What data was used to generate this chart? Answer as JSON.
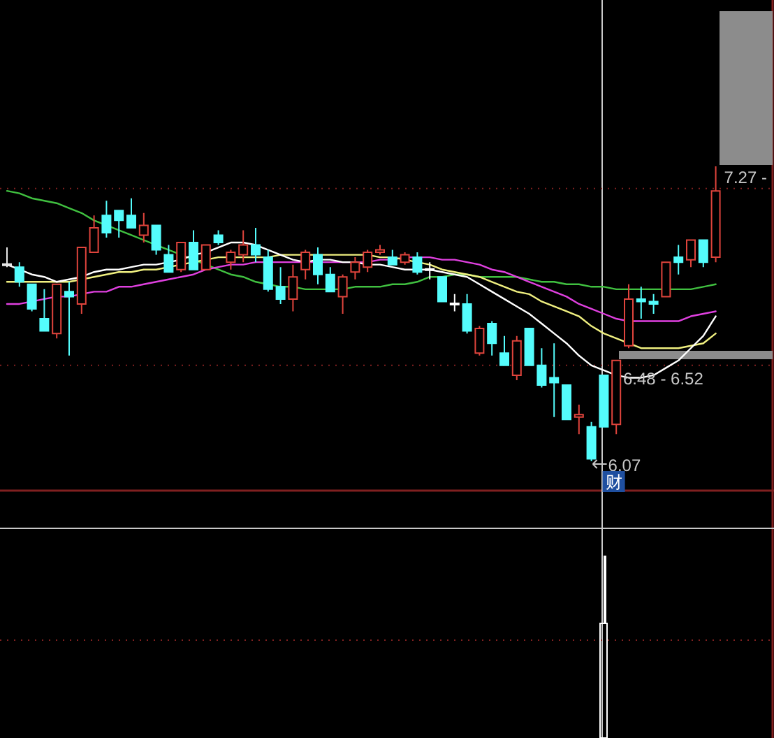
{
  "chart_data": {
    "type": "candlestick",
    "categories": [
      null,
      null,
      null,
      null,
      null,
      null,
      null,
      null,
      null,
      null,
      null,
      null,
      null,
      null,
      null,
      null,
      null,
      null,
      null,
      null,
      null,
      null,
      null,
      null,
      null,
      null,
      null,
      null,
      null,
      null,
      null,
      null,
      null,
      null,
      null,
      null,
      null,
      null,
      null,
      null,
      null,
      null,
      null,
      null,
      null,
      null,
      null,
      null,
      null,
      null,
      null,
      null,
      null,
      null,
      null,
      null,
      null,
      null
    ],
    "ohlc": [
      [
        6.87,
        6.94,
        6.86,
        6.87
      ],
      [
        6.86,
        6.88,
        6.78,
        6.8
      ],
      [
        6.79,
        6.79,
        6.68,
        6.69
      ],
      [
        6.65,
        6.77,
        6.6,
        6.6
      ],
      [
        6.59,
        6.79,
        6.57,
        6.79
      ],
      [
        6.76,
        6.8,
        6.5,
        6.74
      ],
      [
        6.71,
        6.94,
        6.67,
        6.94
      ],
      [
        6.92,
        7.07,
        6.92,
        7.02
      ],
      [
        7.07,
        7.13,
        6.98,
        7.0
      ],
      [
        7.09,
        7.09,
        6.98,
        7.05
      ],
      [
        7.07,
        7.14,
        7.02,
        7.02
      ],
      [
        6.99,
        7.08,
        6.96,
        7.03
      ],
      [
        7.03,
        7.03,
        6.91,
        6.93
      ],
      [
        6.91,
        6.95,
        6.84,
        6.84
      ],
      [
        6.85,
        6.96,
        6.84,
        6.96
      ],
      [
        6.96,
        7.01,
        6.85,
        6.85
      ],
      [
        6.85,
        6.95,
        6.85,
        6.95
      ],
      [
        6.99,
        7.01,
        6.95,
        6.96
      ],
      [
        6.88,
        6.93,
        6.85,
        6.92
      ],
      [
        6.91,
        7.01,
        6.88,
        6.95
      ],
      [
        6.95,
        7.02,
        6.88,
        6.91
      ],
      [
        6.9,
        6.93,
        6.76,
        6.77
      ],
      [
        6.78,
        6.86,
        6.71,
        6.73
      ],
      [
        6.73,
        6.87,
        6.68,
        6.82
      ],
      [
        6.85,
        6.93,
        6.81,
        6.92
      ],
      [
        6.91,
        6.94,
        6.79,
        6.83
      ],
      [
        6.83,
        6.86,
        6.76,
        6.76
      ],
      [
        6.74,
        6.83,
        6.67,
        6.82
      ],
      [
        6.84,
        6.9,
        6.81,
        6.88
      ],
      [
        6.86,
        6.93,
        6.84,
        6.92
      ],
      [
        6.92,
        6.95,
        6.91,
        6.93
      ],
      [
        6.9,
        6.93,
        6.87,
        6.87
      ],
      [
        6.88,
        6.92,
        6.87,
        6.91
      ],
      [
        6.9,
        6.92,
        6.83,
        6.84
      ],
      [
        6.85,
        6.88,
        6.81,
        6.85
      ],
      [
        6.82,
        6.82,
        6.72,
        6.72
      ],
      [
        6.71,
        6.75,
        6.68,
        6.71
      ],
      [
        6.71,
        6.75,
        6.59,
        6.6
      ],
      [
        6.51,
        6.62,
        6.5,
        6.61
      ],
      [
        6.63,
        6.64,
        6.5,
        6.55
      ],
      [
        6.51,
        6.58,
        6.46,
        6.46
      ],
      [
        6.42,
        6.58,
        6.4,
        6.56
      ],
      [
        6.61,
        6.61,
        6.46,
        6.46
      ],
      [
        6.46,
        6.53,
        6.37,
        6.38
      ],
      [
        6.41,
        6.55,
        6.25,
        6.39
      ],
      [
        6.38,
        6.38,
        6.24,
        6.24
      ],
      [
        6.25,
        6.3,
        6.18,
        6.26
      ],
      [
        6.21,
        6.23,
        6.07,
        6.08
      ],
      [
        6.42,
        6.42,
        6.21,
        6.21
      ],
      [
        6.22,
        6.48,
        6.18,
        6.48
      ],
      [
        6.54,
        6.79,
        6.53,
        6.73
      ],
      [
        6.73,
        6.78,
        6.65,
        6.72
      ],
      [
        6.72,
        6.75,
        6.67,
        6.71
      ],
      [
        6.74,
        6.88,
        6.74,
        6.88
      ],
      [
        6.9,
        6.95,
        6.83,
        6.88
      ],
      [
        6.89,
        6.97,
        6.86,
        6.97
      ],
      [
        6.97,
        6.97,
        6.86,
        6.88
      ],
      [
        6.9,
        7.27,
        6.88,
        7.17
      ]
    ],
    "colors": [
      "#e8e8e8",
      "#54fcfc",
      "#54fcfc",
      "#54fcfc",
      "#e0443c",
      "#54fcfc",
      "#e0443c",
      "#e0443c",
      "#54fcfc",
      "#54fcfc",
      "#54fcfc",
      "#e0443c",
      "#54fcfc",
      "#54fcfc",
      "#e0443c",
      "#54fcfc",
      "#e0443c",
      "#54fcfc",
      "#e0443c",
      "#e0443c",
      "#54fcfc",
      "#54fcfc",
      "#54fcfc",
      "#e0443c",
      "#e0443c",
      "#54fcfc",
      "#54fcfc",
      "#e0443c",
      "#e0443c",
      "#e0443c",
      "#e0443c",
      "#54fcfc",
      "#e0443c",
      "#54fcfc",
      "#ffffff",
      "#54fcfc",
      "#ffffff",
      "#54fcfc",
      "#e0443c",
      "#54fcfc",
      "#54fcfc",
      "#e0443c",
      "#54fcfc",
      "#54fcfc",
      "#54fcfc",
      "#54fcfc",
      "#e0443c",
      "#54fcfc",
      "#54fcfc",
      "#e0443c",
      "#e0443c",
      "#54fcfc",
      "#54fcfc",
      "#e0443c",
      "#54fcfc",
      "#e0443c",
      "#54fcfc",
      "#e0443c"
    ],
    "series": [
      {
        "type": "line",
        "color": "#40c040",
        "values": [
          7.17,
          7.16,
          7.14,
          7.13,
          7.12,
          7.1,
          7.08,
          7.05,
          7.03,
          7.01,
          6.99,
          6.97,
          6.95,
          6.93,
          6.91,
          6.89,
          6.87,
          6.85,
          6.83,
          6.82,
          6.8,
          6.79,
          6.78,
          6.78,
          6.77,
          6.77,
          6.77,
          6.77,
          6.78,
          6.78,
          6.78,
          6.79,
          6.79,
          6.8,
          6.82,
          6.82,
          6.83,
          6.83,
          6.82,
          6.82,
          6.82,
          6.82,
          6.81,
          6.8,
          6.8,
          6.79,
          6.79,
          6.78,
          6.78,
          6.77,
          6.77,
          6.77,
          6.77,
          6.77,
          6.77,
          6.77,
          6.78,
          6.79
        ]
      },
      {
        "type": "line",
        "color": "#e040e0",
        "values": [
          6.71,
          6.71,
          6.72,
          6.73,
          6.74,
          6.74,
          6.75,
          6.76,
          6.76,
          6.78,
          6.78,
          6.79,
          6.8,
          6.81,
          6.82,
          6.83,
          6.85,
          6.86,
          6.87,
          6.87,
          6.88,
          6.88,
          6.88,
          6.88,
          6.88,
          6.88,
          6.88,
          6.88,
          6.88,
          6.88,
          6.89,
          6.89,
          6.9,
          6.9,
          6.9,
          6.89,
          6.89,
          6.88,
          6.87,
          6.85,
          6.84,
          6.82,
          6.8,
          6.78,
          6.76,
          6.74,
          6.71,
          6.69,
          6.67,
          6.65,
          6.64,
          6.64,
          6.64,
          6.64,
          6.64,
          6.66,
          6.67,
          6.68
        ]
      },
      {
        "type": "line",
        "color": "#f0f080",
        "values": [
          6.8,
          6.8,
          6.8,
          6.8,
          6.8,
          6.8,
          6.81,
          6.82,
          6.83,
          6.84,
          6.84,
          6.85,
          6.85,
          6.86,
          6.87,
          6.88,
          6.89,
          6.9,
          6.9,
          6.9,
          6.9,
          6.9,
          6.91,
          6.91,
          6.91,
          6.91,
          6.91,
          6.91,
          6.91,
          6.91,
          6.9,
          6.9,
          6.89,
          6.88,
          6.87,
          6.85,
          6.84,
          6.83,
          6.82,
          6.8,
          6.78,
          6.76,
          6.75,
          6.72,
          6.7,
          6.68,
          6.66,
          6.62,
          6.59,
          6.57,
          6.55,
          6.53,
          6.53,
          6.53,
          6.53,
          6.54,
          6.55,
          6.59
        ]
      },
      {
        "type": "line",
        "color": "#ffffff",
        "values": [
          6.87,
          6.85,
          6.83,
          6.82,
          6.8,
          6.81,
          6.82,
          6.84,
          6.85,
          6.85,
          6.86,
          6.87,
          6.87,
          6.88,
          6.89,
          6.91,
          6.92,
          6.94,
          6.96,
          6.96,
          6.95,
          6.93,
          6.91,
          6.89,
          6.88,
          6.89,
          6.89,
          6.88,
          6.88,
          6.87,
          6.87,
          6.86,
          6.85,
          6.85,
          6.85,
          6.84,
          6.83,
          6.82,
          6.79,
          6.76,
          6.73,
          6.7,
          6.67,
          6.63,
          6.59,
          6.55,
          6.5,
          6.46,
          6.44,
          6.42,
          6.41,
          6.41,
          6.42,
          6.45,
          6.48,
          6.53,
          6.58,
          6.66
        ]
      }
    ],
    "ref_lines": [
      {
        "axis": "y",
        "value": 7.18,
        "color": "#802020",
        "line_style": "dotted"
      },
      {
        "axis": "y",
        "value": 6.46,
        "color": "#802020",
        "line_style": "dotted"
      }
    ],
    "annotations": [
      "7.27 -",
      "6.48 - 6.52",
      "6.07",
      "财"
    ]
  }
}
